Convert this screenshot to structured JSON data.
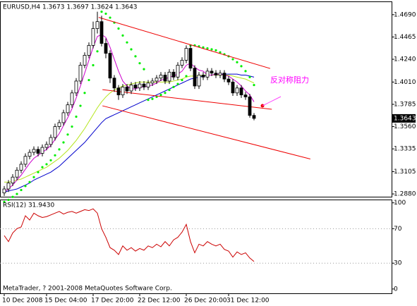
{
  "chart_data": [
    {
      "type": "candlestick",
      "title": "EURUSD,H4 1.3673 1.3697 1.3624 1.3643",
      "footer": "MetaTrader, ? 2001-2008 MetaQuotes Software Corp.",
      "annotation": "反对称阻力",
      "categories": [
        "10 Dec 2008",
        null,
        null,
        null,
        null,
        null,
        null,
        null,
        null,
        null,
        "15 Dec 04:00",
        null,
        null,
        null,
        null,
        null,
        null,
        null,
        null,
        null,
        null,
        "17 Dec 20:00",
        null,
        null,
        null,
        null,
        null,
        null,
        null,
        null,
        null,
        null,
        "22 Dec 12:00",
        null,
        null,
        null,
        null,
        null,
        null,
        null,
        null,
        null,
        null,
        "26 Dec 20:00",
        null,
        null,
        null,
        null,
        null,
        null,
        null,
        null,
        null,
        "31 Dec 12:00",
        null,
        null,
        null,
        null,
        null,
        null
      ],
      "open": [
        1.289,
        1.293,
        1.299,
        1.305,
        1.312,
        1.318,
        1.326,
        1.33,
        1.333,
        1.329,
        1.335,
        1.338,
        1.345,
        1.356,
        1.36,
        1.37,
        1.378,
        1.39,
        1.402,
        1.418,
        1.428,
        1.438,
        1.455,
        1.462,
        1.44,
        1.43,
        1.405,
        1.395,
        1.388,
        1.396,
        1.392,
        1.398,
        1.395,
        1.399,
        1.396,
        1.4,
        1.402,
        1.405,
        1.408,
        1.402,
        1.411,
        1.406,
        1.418,
        1.423,
        1.435,
        1.415,
        1.397,
        1.408,
        1.406,
        1.412,
        1.41,
        1.408,
        1.41,
        1.404,
        1.401,
        1.39,
        1.395,
        1.388,
        1.386,
        1.3673
      ],
      "high": [
        1.296,
        1.302,
        1.308,
        1.315,
        1.321,
        1.329,
        1.333,
        1.336,
        1.336,
        1.338,
        1.341,
        1.348,
        1.359,
        1.363,
        1.373,
        1.381,
        1.393,
        1.405,
        1.421,
        1.431,
        1.441,
        1.462,
        1.472,
        1.468,
        1.445,
        1.433,
        1.408,
        1.398,
        1.399,
        1.399,
        1.401,
        1.401,
        1.402,
        1.402,
        1.403,
        1.405,
        1.408,
        1.411,
        1.411,
        1.414,
        1.414,
        1.421,
        1.426,
        1.438,
        1.438,
        1.418,
        1.411,
        1.411,
        1.415,
        1.415,
        1.413,
        1.413,
        1.413,
        1.407,
        1.404,
        1.398,
        1.398,
        1.391,
        1.389,
        1.3697
      ],
      "low": [
        1.286,
        1.29,
        1.296,
        1.302,
        1.309,
        1.315,
        1.323,
        1.327,
        1.326,
        1.326,
        1.332,
        1.335,
        1.342,
        1.353,
        1.357,
        1.367,
        1.375,
        1.387,
        1.399,
        1.415,
        1.425,
        1.435,
        1.45,
        1.437,
        1.425,
        1.4,
        1.391,
        1.383,
        1.385,
        1.389,
        1.389,
        1.392,
        1.392,
        1.393,
        1.393,
        1.397,
        1.399,
        1.402,
        1.399,
        1.399,
        1.403,
        1.403,
        1.415,
        1.42,
        1.412,
        1.394,
        1.394,
        1.403,
        1.403,
        1.407,
        1.405,
        1.405,
        1.401,
        1.398,
        1.387,
        1.387,
        1.385,
        1.383,
        1.365,
        1.3624
      ],
      "close": [
        1.293,
        1.299,
        1.305,
        1.312,
        1.318,
        1.326,
        1.33,
        1.333,
        1.329,
        1.335,
        1.338,
        1.345,
        1.356,
        1.36,
        1.37,
        1.378,
        1.39,
        1.402,
        1.418,
        1.428,
        1.438,
        1.455,
        1.462,
        1.44,
        1.43,
        1.405,
        1.395,
        1.388,
        1.396,
        1.392,
        1.398,
        1.395,
        1.399,
        1.396,
        1.4,
        1.402,
        1.405,
        1.408,
        1.402,
        1.411,
        1.406,
        1.418,
        1.423,
        1.435,
        1.415,
        1.397,
        1.408,
        1.406,
        1.412,
        1.41,
        1.408,
        1.41,
        1.404,
        1.401,
        1.39,
        1.395,
        1.388,
        1.386,
        1.3673,
        1.3643
      ],
      "series": [
        {
          "color": "#0000cc",
          "values": [
            1.29,
            1.291,
            1.292,
            1.293,
            1.295,
            1.297,
            1.299,
            1.302,
            1.304,
            1.306,
            1.308,
            1.31,
            1.313,
            1.316,
            1.32,
            1.324,
            1.328,
            1.332,
            1.336,
            1.34,
            1.345,
            1.35,
            1.355,
            1.36,
            1.364,
            1.366,
            1.368,
            1.37,
            1.372,
            1.374,
            1.376,
            1.378,
            1.38,
            1.382,
            1.384,
            1.386,
            1.388,
            1.39,
            1.392,
            1.394,
            1.396,
            1.398,
            1.4,
            1.402,
            1.404,
            1.405,
            1.406,
            1.407,
            1.408,
            1.408,
            1.409,
            1.409,
            1.409,
            1.409,
            1.409,
            1.409,
            1.408,
            1.408,
            1.407,
            1.406
          ]
        },
        {
          "color": "#b5e61d",
          "values": [
            1.3,
            1.3,
            1.301,
            1.302,
            1.303,
            1.305,
            1.307,
            1.309,
            1.311,
            1.313,
            1.315,
            1.318,
            1.321,
            1.324,
            1.328,
            1.332,
            1.337,
            1.342,
            1.348,
            1.354,
            1.361,
            1.368,
            1.375,
            1.381,
            1.386,
            1.39,
            1.393,
            1.395,
            1.397,
            1.398,
            1.399,
            1.4,
            1.401,
            1.401,
            1.401,
            1.401,
            1.401,
            1.401,
            1.401,
            1.401,
            1.402,
            1.403,
            1.404,
            1.406,
            1.407,
            1.407,
            1.407,
            1.408,
            1.408,
            1.408,
            1.408,
            1.408,
            1.408,
            1.408,
            1.407,
            1.406,
            1.405,
            1.404,
            1.402,
            1.4
          ]
        },
        {
          "color": "#cc00cc",
          "values": [
            1.29,
            1.293,
            1.297,
            1.302,
            1.307,
            1.313,
            1.319,
            1.324,
            1.327,
            1.33,
            1.333,
            1.337,
            1.343,
            1.349,
            1.357,
            1.365,
            1.374,
            1.385,
            1.397,
            1.41,
            1.423,
            1.436,
            1.447,
            1.449,
            1.446,
            1.436,
            1.424,
            1.412,
            1.402,
            1.397,
            1.394,
            1.394,
            1.396,
            1.396,
            1.397,
            1.398,
            1.4,
            1.403,
            1.404,
            1.406,
            1.407,
            1.409,
            1.412,
            1.418,
            1.42,
            1.416,
            1.413,
            1.412,
            1.408,
            1.408,
            1.409,
            1.409,
            1.408,
            1.407,
            1.404,
            1.401,
            1.397,
            1.392,
            1.388,
            1.381
          ]
        },
        {
          "color": "#00ee00",
          "marker": "dot",
          "values": [
            1.28,
            1.282,
            1.285,
            1.288,
            1.292,
            1.296,
            1.3,
            1.305,
            1.31,
            1.315,
            1.318,
            1.322,
            1.327,
            1.333,
            1.34,
            1.348,
            1.356,
            1.366,
            1.377,
            1.39,
            1.403,
            1.418,
            1.432,
            1.472,
            1.47,
            1.466,
            1.461,
            1.455,
            1.448,
            1.441,
            1.434,
            1.427,
            1.42,
            1.414,
            1.383,
            1.384,
            1.386,
            1.388,
            1.39,
            1.393,
            1.396,
            1.399,
            1.403,
            1.407,
            1.438,
            1.438,
            1.437,
            1.436,
            1.435,
            1.434,
            1.433,
            1.431,
            1.429,
            1.427,
            1.424,
            1.421,
            1.417,
            1.412,
            1.406,
            1.398
          ]
        }
      ],
      "trendlines": [
        {
          "color": "#ee0000",
          "x": [
            22.3,
            62.8
          ],
          "y": [
            1.4663,
            1.4147
          ]
        },
        {
          "color": "#ee0000",
          "x": [
            23.2,
            63.2
          ],
          "y": [
            1.3933,
            1.3735
          ]
        },
        {
          "color": "#ee0000",
          "x": [
            23.2,
            72.3
          ],
          "y": [
            1.377,
            1.3233
          ]
        }
      ],
      "ylim": [
        1.2852,
        1.4817
      ],
      "yticks": [
        {
          "value": 1.469,
          "label": "1.4690"
        },
        1.4465,
        {
          "value": 1.424,
          "label": "1.4240"
        },
        {
          "value": 1.401,
          "label": "1.4010"
        },
        1.3785,
        {
          "value": 1.356,
          "label": "1.3560"
        },
        1.3335,
        1.3105,
        {
          "value": 1.288,
          "label": "1.2880"
        }
      ]
    },
    {
      "type": "line",
      "title": "RSI(12) 31.9430",
      "color": "#cc0000",
      "values": [
        62,
        55,
        65,
        70,
        72,
        85,
        80,
        88,
        85,
        83,
        84,
        86,
        88,
        90,
        87,
        89,
        90,
        88,
        90,
        92,
        91,
        93,
        88,
        70,
        60,
        48,
        45,
        40,
        50,
        45,
        48,
        44,
        47,
        45,
        50,
        48,
        52,
        49,
        55,
        50,
        57,
        60,
        66,
        75,
        55,
        42,
        52,
        50,
        55,
        52,
        50,
        52,
        46,
        44,
        37,
        43,
        40,
        42,
        36,
        31.943
      ],
      "ylim": [
        -5,
        103
      ],
      "yticks": [
        100,
        70,
        30,
        0
      ]
    }
  ]
}
